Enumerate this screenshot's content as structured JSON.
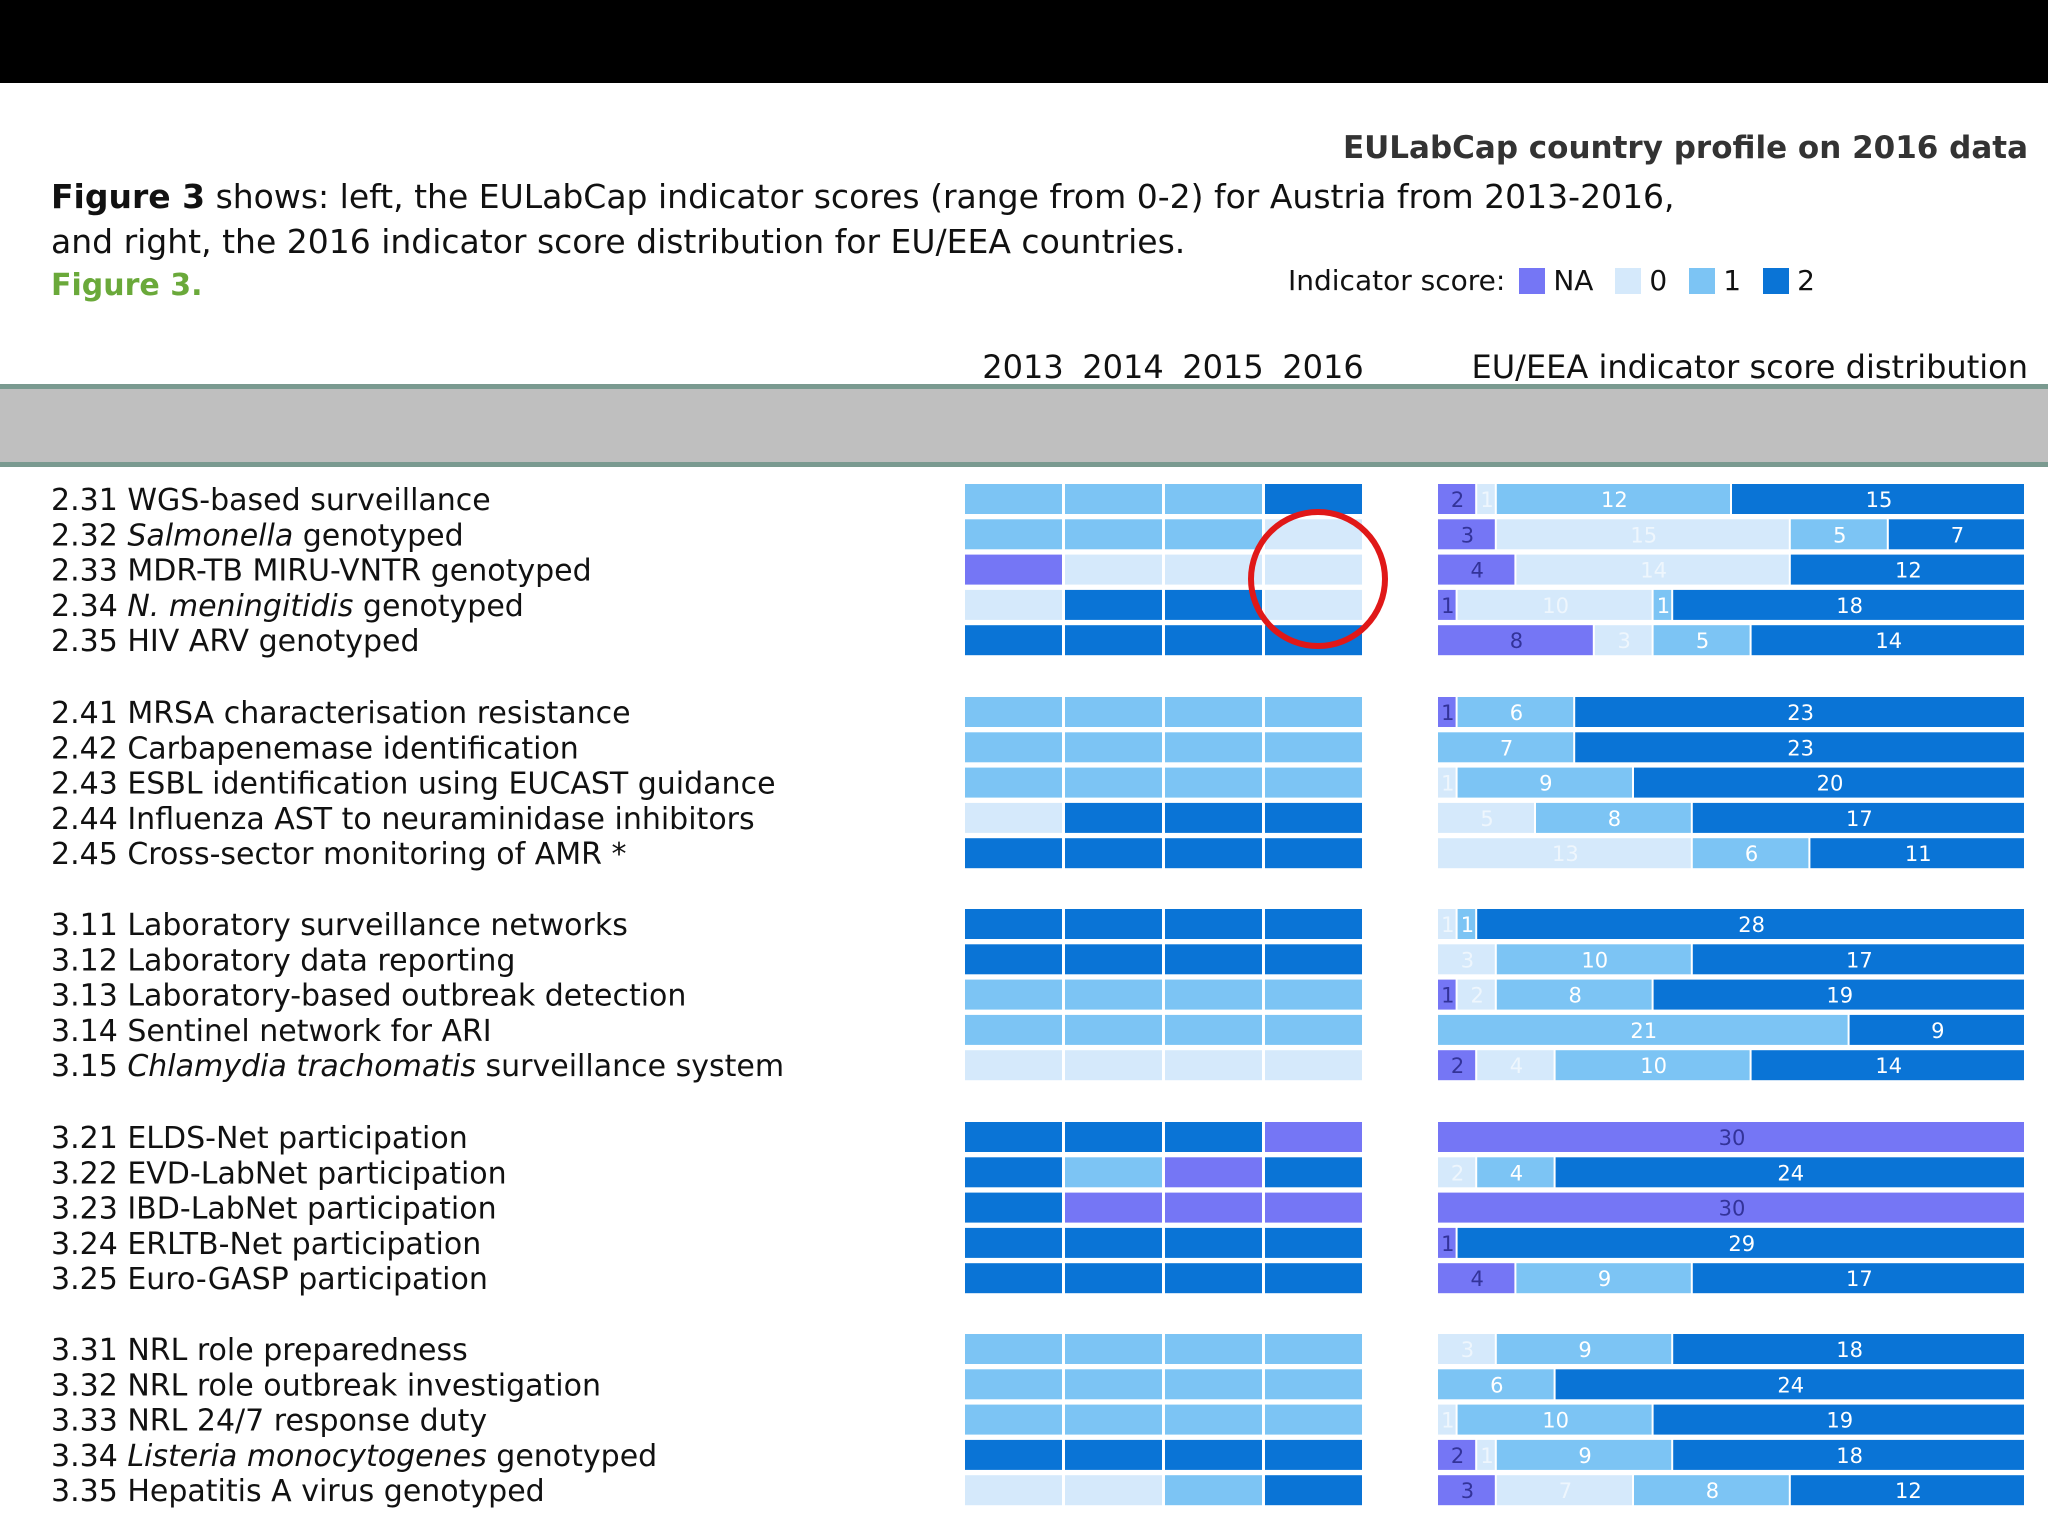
{
  "header": {
    "right_title": "EULabCap country profile on 2016 data",
    "desc_bold": "Figure 3",
    "desc_line1": " shows: left, the EULabCap indicator scores (range from 0-2) for Austria from 2013-2016,",
    "desc_line2": "and right, the 2016 indicator score distribution for EU/EEA countries.",
    "figure_label": "Figure 3."
  },
  "legend": {
    "title": "Indicator score:",
    "items": [
      {
        "label": "NA",
        "color": "#7576f5"
      },
      {
        "label": "0",
        "color": "#d5e9fb"
      },
      {
        "label": "1",
        "color": "#7cc4f4"
      },
      {
        "label": "2",
        "color": "#0a74d6"
      }
    ]
  },
  "colors": {
    "NA": "#7576f5",
    "0": "#d5e9fb",
    "1": "#7cc4f4",
    "2": "#0a74d6",
    "annotation": "#e01818"
  },
  "chart_data": {
    "type": "heatmap",
    "title": "EULabCap indicator scores for Austria 2013-2016 and 2016 EU/EEA indicator score distribution",
    "years": [
      "2013",
      "2014",
      "2015",
      "2016"
    ],
    "distribution_title": "EU/EEA indicator score distribution",
    "categories_order": [
      "NA",
      "0",
      "1",
      "2"
    ],
    "groups": [
      {
        "rows": [
          {
            "label": "2.31 WGS-based surveillance",
            "scores": [
              "1",
              "1",
              "1",
              "2"
            ],
            "dist": [
              2,
              1,
              12,
              15
            ]
          },
          {
            "label_parts": [
              {
                "t": "2.32 "
              },
              {
                "t": "Salmonella",
                "i": true
              },
              {
                "t": " genotyped"
              }
            ],
            "scores": [
              "1",
              "1",
              "1",
              "0"
            ],
            "dist": [
              3,
              15,
              5,
              7
            ]
          },
          {
            "label": "2.33 MDR-TB MIRU-VNTR genotyped",
            "scores": [
              "NA",
              "0",
              "0",
              "0"
            ],
            "dist": [
              4,
              14,
              0,
              12
            ]
          },
          {
            "label_parts": [
              {
                "t": "2.34 "
              },
              {
                "t": "N. meningitidis",
                "i": true
              },
              {
                "t": " genotyped"
              }
            ],
            "scores": [
              "0",
              "2",
              "2",
              "0"
            ],
            "dist": [
              1,
              10,
              1,
              18
            ]
          },
          {
            "label": "2.35 HIV ARV genotyped",
            "scores": [
              "2",
              "2",
              "2",
              "2"
            ],
            "dist": [
              8,
              3,
              5,
              14
            ]
          }
        ]
      },
      {
        "rows": [
          {
            "label": "2.41 MRSA characterisation resistance",
            "scores": [
              "1",
              "1",
              "1",
              "1"
            ],
            "dist": [
              1,
              0,
              6,
              23
            ]
          },
          {
            "label": "2.42 Carbapenemase identification",
            "scores": [
              "1",
              "1",
              "1",
              "1"
            ],
            "dist": [
              0,
              0,
              7,
              23
            ]
          },
          {
            "label": "2.43 ESBL identification using EUCAST guidance",
            "scores": [
              "1",
              "1",
              "1",
              "1"
            ],
            "dist": [
              0,
              1,
              9,
              20
            ]
          },
          {
            "label": "2.44 Influenza AST to neuraminidase inhibitors",
            "scores": [
              "0",
              "2",
              "2",
              "2"
            ],
            "dist": [
              0,
              5,
              8,
              17
            ]
          },
          {
            "label": "2.45 Cross-sector monitoring of AMR *",
            "scores": [
              "2",
              "2",
              "2",
              "2"
            ],
            "dist": [
              0,
              13,
              6,
              11
            ]
          }
        ]
      },
      {
        "rows": [
          {
            "label": "3.11 Laboratory surveillance networks",
            "scores": [
              "2",
              "2",
              "2",
              "2"
            ],
            "dist": [
              0,
              1,
              1,
              28
            ]
          },
          {
            "label": "3.12 Laboratory data reporting",
            "scores": [
              "2",
              "2",
              "2",
              "2"
            ],
            "dist": [
              0,
              3,
              10,
              17
            ]
          },
          {
            "label": "3.13 Laboratory-based outbreak detection",
            "scores": [
              "1",
              "1",
              "1",
              "1"
            ],
            "dist": [
              1,
              2,
              8,
              19
            ]
          },
          {
            "label": "3.14 Sentinel network for ARI",
            "scores": [
              "1",
              "1",
              "1",
              "1"
            ],
            "dist": [
              0,
              0,
              21,
              9
            ]
          },
          {
            "label_parts": [
              {
                "t": "3.15 "
              },
              {
                "t": "Chlamydia trachomatis",
                "i": true
              },
              {
                "t": " surveillance system"
              }
            ],
            "scores": [
              "0",
              "0",
              "0",
              "0"
            ],
            "dist": [
              2,
              4,
              10,
              14
            ]
          }
        ]
      },
      {
        "rows": [
          {
            "label": "3.21 ELDS-Net participation",
            "scores": [
              "2",
              "2",
              "2",
              "NA"
            ],
            "dist": [
              30,
              0,
              0,
              0
            ]
          },
          {
            "label": "3.22 EVD-LabNet participation",
            "scores": [
              "2",
              "1",
              "NA",
              "2"
            ],
            "dist": [
              0,
              2,
              4,
              24
            ]
          },
          {
            "label": "3.23 IBD-LabNet participation",
            "scores": [
              "2",
              "NA",
              "NA",
              "NA"
            ],
            "dist": [
              30,
              0,
              0,
              0
            ]
          },
          {
            "label": "3.24 ERLTB-Net participation",
            "scores": [
              "2",
              "2",
              "2",
              "2"
            ],
            "dist": [
              1,
              0,
              0,
              29
            ]
          },
          {
            "label": "3.25 Euro-GASP participation",
            "scores": [
              "2",
              "2",
              "2",
              "2"
            ],
            "dist": [
              4,
              0,
              9,
              17
            ]
          }
        ]
      },
      {
        "rows": [
          {
            "label": "3.31 NRL role preparedness",
            "scores": [
              "1",
              "1",
              "1",
              "1"
            ],
            "dist": [
              0,
              3,
              9,
              18
            ]
          },
          {
            "label": "3.32 NRL role outbreak investigation",
            "scores": [
              "1",
              "1",
              "1",
              "1"
            ],
            "dist": [
              0,
              0,
              6,
              24
            ]
          },
          {
            "label": "3.33 NRL 24/7 response duty",
            "scores": [
              "1",
              "1",
              "1",
              "1"
            ],
            "dist": [
              0,
              1,
              10,
              19
            ]
          },
          {
            "label_parts": [
              {
                "t": "3.34 "
              },
              {
                "t": "Listeria monocytogenes",
                "i": true
              },
              {
                "t": " genotyped"
              }
            ],
            "scores": [
              "2",
              "2",
              "2",
              "2"
            ],
            "dist": [
              2,
              1,
              9,
              18
            ]
          },
          {
            "label": "3.35 Hepatitis A virus genotyped",
            "scores": [
              "0",
              "0",
              "1",
              "2"
            ],
            "dist": [
              3,
              7,
              8,
              12
            ]
          }
        ]
      }
    ]
  }
}
